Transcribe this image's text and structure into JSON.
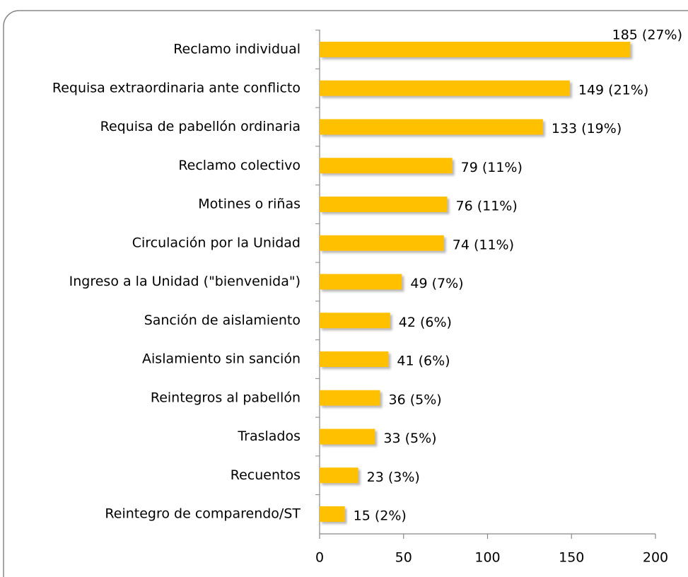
{
  "chart_data": {
    "type": "bar",
    "orientation": "horizontal",
    "categories": [
      "Reclamo individual",
      "Requisa extraordinaria ante conflicto",
      "Requisa de pabellón ordinaria",
      "Reclamo colectivo",
      "Motines o riñas",
      "Circulación por la Unidad",
      "Ingreso a la Unidad (\"bienvenida\")",
      "Sanción de aislamiento",
      "Aislamiento sin sanción",
      "Reintegros al pabellón",
      "Traslados",
      "Recuentos",
      "Reintegro de comparendo/ST"
    ],
    "values": [
      185,
      149,
      133,
      79,
      76,
      74,
      49,
      42,
      41,
      36,
      33,
      23,
      15
    ],
    "value_labels": [
      "185 (27%)",
      "149 (21%)",
      "133 (19%)",
      "79 (11%)",
      "76 (11%)",
      "74 (11%)",
      "49 (7%)",
      "42 (6%)",
      "41 (6%)",
      "36 (5%)",
      "33 (5%)",
      "23 (3%)",
      "15 (2%)"
    ],
    "color": "#ffc000",
    "xlim": [
      0,
      200
    ],
    "xticks": [
      0,
      50,
      100,
      150,
      200
    ],
    "grid": false
  }
}
